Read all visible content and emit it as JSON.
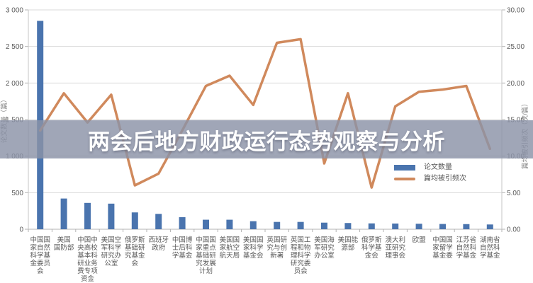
{
  "overlay": {
    "title": "两会后地方财政运行态势观察与分析",
    "band_color": "#8b92a7"
  },
  "chart_data": {
    "type": "bar+line combo",
    "title": "",
    "categories": [
      "中国国家自然科学基金委员会",
      "美国国防部",
      "中国中央高校基本科研业务费专项资金",
      "美国空军科学研究办公室",
      "俄罗斯基础研究基金会",
      "西班牙政府",
      "中国博士后科学基金",
      "中国国家重点基础研究发展计划",
      "美国国家航空航天局",
      "美国国家科学基金会",
      "英国研究与创新署",
      "英国工程和物理科学研究委员会",
      "美国海军研究办公室",
      "美国能源部",
      "俄罗斯科学基金会",
      "澳大利亚研究理事会",
      "欧盟",
      "中国国家留学基金委",
      "江苏省自然科学基金",
      "湖南省自然科学基金"
    ],
    "xtick_lines": [
      [
        "中国国",
        "家自然",
        "科学基",
        "金委员",
        "会"
      ],
      [
        "美国",
        "国防部"
      ],
      [
        "中国中",
        "央高校",
        "基本科",
        "研业务",
        "费专项",
        "资金"
      ],
      [
        "美国空",
        "军科学",
        "研究办",
        "公室"
      ],
      [
        "俄罗斯",
        "基础研",
        "究基金",
        "会"
      ],
      [
        "西班牙",
        "政府"
      ],
      [
        "中国博",
        "士后科",
        "学基金"
      ],
      [
        "中国国",
        "家重点",
        "基础研",
        "究发展",
        "计划"
      ],
      [
        "美国国",
        "家航空",
        "航天局"
      ],
      [
        "美国国",
        "家科学",
        "基金会"
      ],
      [
        "英国研",
        "究与创",
        "新署"
      ],
      [
        "英国工",
        "程和物",
        "理科学",
        "研究委",
        "员会"
      ],
      [
        "美国海",
        "军研究",
        "办公室"
      ],
      [
        "美国能",
        "源部"
      ],
      [
        "俄罗斯",
        "科学基",
        "金会"
      ],
      [
        "澳大利",
        "亚研究",
        "理事会"
      ],
      [
        "欧盟"
      ],
      [
        "中国国",
        "家留学",
        "基金委"
      ],
      [
        "江苏省",
        "自然科",
        "学基金"
      ],
      [
        "湖南省",
        "自然科",
        "学基金"
      ]
    ],
    "series": [
      {
        "name": "论文数量",
        "type": "bar",
        "axis": "left",
        "color": "#4a74ae",
        "values": [
          2850,
          420,
          360,
          350,
          230,
          210,
          165,
          130,
          130,
          110,
          100,
          100,
          90,
          85,
          80,
          78,
          75,
          72,
          70,
          65
        ]
      },
      {
        "name": "篇均被引频次",
        "type": "line",
        "axis": "right",
        "color": "#d0895c",
        "values": [
          13.5,
          18.6,
          14.6,
          18.4,
          6.0,
          7.6,
          13.5,
          19.6,
          21.0,
          17.0,
          25.5,
          26.0,
          9.0,
          18.6,
          5.7,
          16.8,
          18.8,
          19.1,
          19.6,
          11.0
        ]
      }
    ],
    "left_axis": {
      "title": "论文数量（篇）",
      "min": 0,
      "max": 3000,
      "step": 500,
      "tick_labels": [
        "0",
        "500",
        "1 000",
        "1 500",
        "2 000",
        "2 500",
        "3 000"
      ]
    },
    "right_axis": {
      "title": "篇均被引频次（次/篇）",
      "min": 0,
      "max": 30,
      "step": 5,
      "tick_labels": [
        "0.00",
        "5.00",
        "10.00",
        "15.00",
        "20.00",
        "25.00",
        "30.00"
      ]
    },
    "grid": true,
    "legend_position": "inside-bottom-right"
  }
}
